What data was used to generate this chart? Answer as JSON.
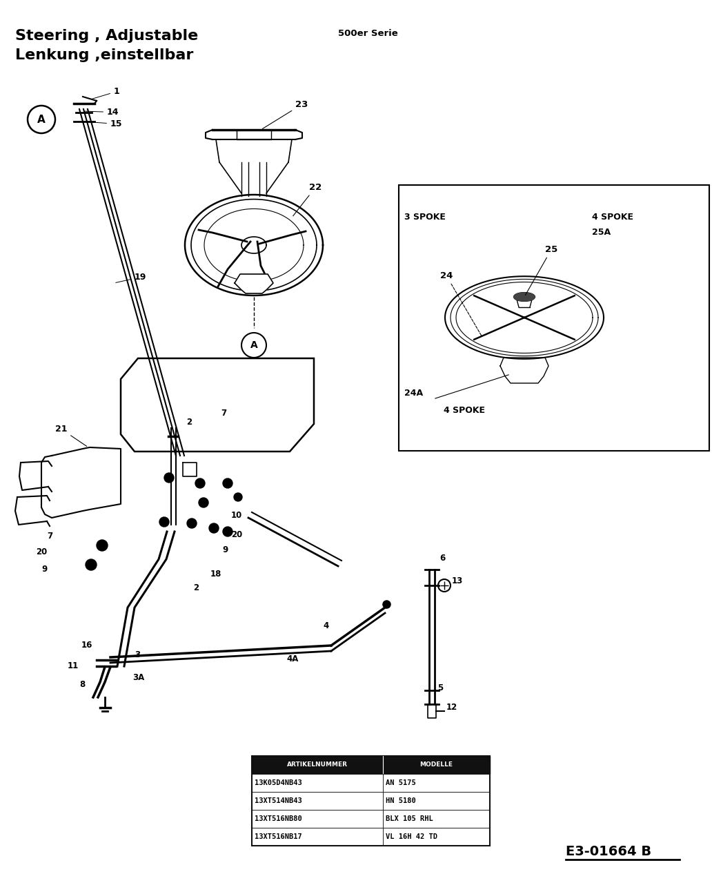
{
  "title_line1": "Steering , Adjustable",
  "title_line2": "Lenkung ,einstellbar",
  "series_text": "500er Serie",
  "diagram_id": "E3-01664 B",
  "bg_color": "#ffffff",
  "fg_color": "#000000",
  "table_rows": [
    [
      "13K05D4NB43",
      "AN 5175"
    ],
    [
      "13XT514NB43",
      "HN 5180"
    ],
    [
      "13XT516NB80",
      "BLX 105 RHL"
    ],
    [
      "13XT516NB17",
      "VL 16H 42 TD"
    ]
  ]
}
